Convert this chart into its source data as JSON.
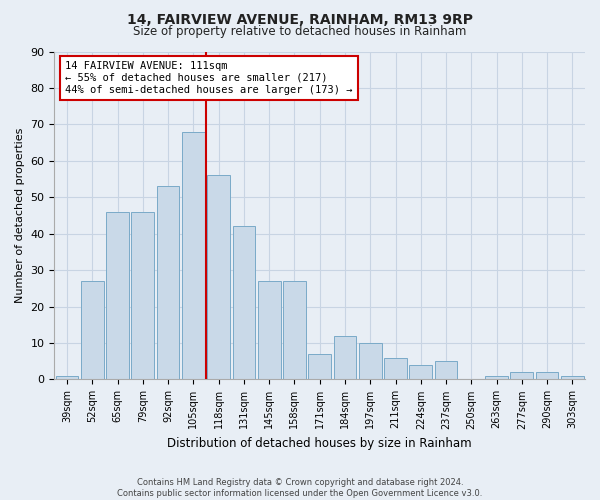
{
  "title": "14, FAIRVIEW AVENUE, RAINHAM, RM13 9RP",
  "subtitle": "Size of property relative to detached houses in Rainham",
  "xlabel": "Distribution of detached houses by size in Rainham",
  "ylabel": "Number of detached properties",
  "categories": [
    "39sqm",
    "52sqm",
    "65sqm",
    "79sqm",
    "92sqm",
    "105sqm",
    "118sqm",
    "131sqm",
    "145sqm",
    "158sqm",
    "171sqm",
    "184sqm",
    "197sqm",
    "211sqm",
    "224sqm",
    "237sqm",
    "250sqm",
    "263sqm",
    "277sqm",
    "290sqm",
    "303sqm"
  ],
  "values": [
    1,
    27,
    46,
    46,
    53,
    68,
    56,
    42,
    27,
    27,
    7,
    12,
    10,
    6,
    4,
    5,
    0,
    1,
    2,
    2,
    1
  ],
  "bar_color": "#c9d9e8",
  "bar_edge_color": "#7aaac8",
  "vline_color": "#cc0000",
  "annotation_text": "14 FAIRVIEW AVENUE: 111sqm\n← 55% of detached houses are smaller (217)\n44% of semi-detached houses are larger (173) →",
  "annotation_box_color": "#ffffff",
  "annotation_box_edge": "#cc0000",
  "ylim": [
    0,
    90
  ],
  "yticks": [
    0,
    10,
    20,
    30,
    40,
    50,
    60,
    70,
    80,
    90
  ],
  "grid_color": "#c8d4e3",
  "bg_color": "#e8eef5",
  "footer": "Contains HM Land Registry data © Crown copyright and database right 2024.\nContains public sector information licensed under the Open Government Licence v3.0."
}
